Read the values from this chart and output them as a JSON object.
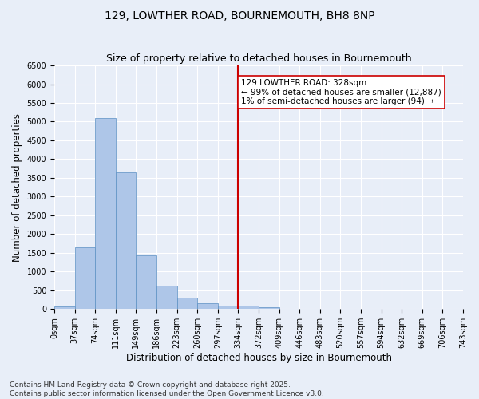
{
  "title": "129, LOWTHER ROAD, BOURNEMOUTH, BH8 8NP",
  "subtitle": "Size of property relative to detached houses in Bournemouth",
  "xlabel": "Distribution of detached houses by size in Bournemouth",
  "ylabel": "Number of detached properties",
  "footer_line1": "Contains HM Land Registry data © Crown copyright and database right 2025.",
  "footer_line2": "Contains public sector information licensed under the Open Government Licence v3.0.",
  "bin_labels": [
    "0sqm",
    "37sqm",
    "74sqm",
    "111sqm",
    "149sqm",
    "186sqm",
    "223sqm",
    "260sqm",
    "297sqm",
    "334sqm",
    "372sqm",
    "409sqm",
    "446sqm",
    "483sqm",
    "520sqm",
    "557sqm",
    "594sqm",
    "632sqm",
    "669sqm",
    "706sqm",
    "743sqm"
  ],
  "bar_values": [
    70,
    1650,
    5100,
    3650,
    1430,
    620,
    310,
    150,
    100,
    80,
    50,
    0,
    0,
    0,
    0,
    0,
    0,
    0,
    0,
    0
  ],
  "bar_color": "#aec6e8",
  "bar_edge_color": "#5a8fc3",
  "vline_x": 9,
  "vline_color": "#cc0000",
  "annotation_text": "129 LOWTHER ROAD: 328sqm\n← 99% of detached houses are smaller (12,887)\n1% of semi-detached houses are larger (94) →",
  "annotation_box_color": "#ffffff",
  "annotation_box_edge": "#cc0000",
  "ylim": [
    0,
    6500
  ],
  "yticks": [
    0,
    500,
    1000,
    1500,
    2000,
    2500,
    3000,
    3500,
    4000,
    4500,
    5000,
    5500,
    6000,
    6500
  ],
  "background_color": "#e8eef8",
  "axes_background": "#e8eef8",
  "grid_color": "#ffffff",
  "title_fontsize": 10,
  "subtitle_fontsize": 9,
  "label_fontsize": 8.5,
  "tick_fontsize": 7,
  "annot_fontsize": 7.5,
  "footer_fontsize": 6.5
}
